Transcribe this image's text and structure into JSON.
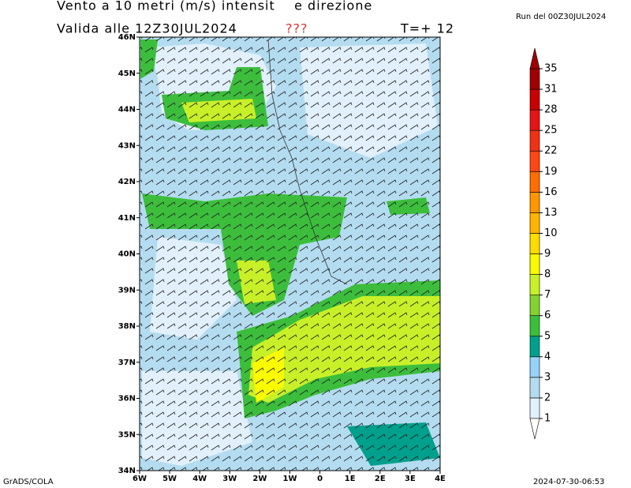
{
  "header": {
    "title": "Vento a 10 metri (m/s) intensit    e direzione",
    "valid": "Valida alle 12Z30JUL2024",
    "unknown": "???",
    "step": "T=+ 12",
    "run": "Run del 00Z30JUL2024"
  },
  "map": {
    "lat_labels": [
      "46N",
      "45N",
      "44N",
      "43N",
      "42N",
      "41N",
      "40N",
      "39N",
      "38N",
      "37N",
      "36N",
      "35N",
      "34N"
    ],
    "lon_labels": [
      "6W",
      "5W",
      "4W",
      "3W",
      "2W",
      "1W",
      "0",
      "1E",
      "2E",
      "3E",
      "4E"
    ]
  },
  "colorbar": {
    "levels": [
      1,
      2,
      3,
      4,
      5,
      6,
      7,
      8,
      9,
      10,
      13,
      16,
      19,
      22,
      25,
      28,
      31,
      35
    ],
    "colors": [
      "#e1f0fa",
      "#b4dcf0",
      "#96d2fa",
      "#00a08c",
      "#3cbe3c",
      "#82d232",
      "#c8f028",
      "#fafa00",
      "#ffdc00",
      "#ffb400",
      "#ff9600",
      "#ff6e00",
      "#ff4614",
      "#f03214",
      "#e61414",
      "#c80000",
      "#a00000"
    ],
    "under_color": "#ffffff",
    "over_color": "#a00000"
  },
  "footer": {
    "left": "GrADS/COLA",
    "right": "2024-07-30-06:53"
  }
}
